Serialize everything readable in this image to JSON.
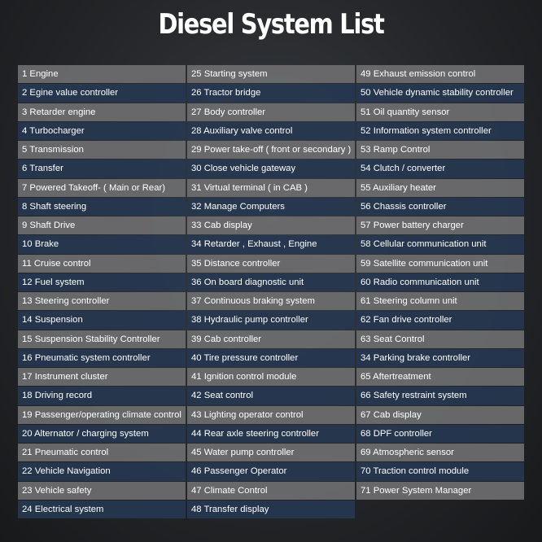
{
  "header": {
    "title": "Diesel System List"
  },
  "table": {
    "columns": [
      [
        "1 Engine",
        "2 Egine value controller",
        "3 Retarder engine",
        "4 Turbocharger",
        "5 Transmission",
        "6 Transfer",
        "7 Powered Takeoff- ( Main or Rear)",
        "8 Shaft steering",
        "9 Shaft Drive",
        "10 Brake",
        "11 Cruise control",
        "12 Fuel system",
        "13 Steering controller",
        "14 Suspension",
        "15 Suspension Stability Controller",
        "16 Pneumatic system controller",
        "17 Instrument cluster",
        "18 Driving record",
        "19 Passenger/operating climate control",
        "20 Alternator / charging system",
        "21 Pneumatic control",
        "22 Vehicle Navigation",
        "23 Vehicle safety",
        "24 Electrical system"
      ],
      [
        "25 Starting system",
        "26 Tractor bridge",
        "27 Body controller",
        "28 Auxiliary valve control",
        "29 Power take-off ( front or secondary )",
        "30 Close vehicle gateway",
        "31 Virtual terminal ( in CAB )",
        "32 Manage Computers",
        "33 Cab display",
        "34 Retarder , Exhaust , Engine",
        "35 Distance controller",
        "36 On board diagnostic unit",
        "37 Continuous braking system",
        "38 Hydraulic pump controller",
        "39 Cab controller",
        "40 Tire pressure controller",
        "41 Ignition control module",
        "42 Seat control",
        "43 Lighting operator control",
        "44 Rear axle steering controller",
        "45 Water pump controller",
        "46 Passenger Operator",
        "47 Climate Control",
        "48 Transfer display"
      ],
      [
        "49 Exhaust emission control",
        "50 Vehicle dynamic stability controller",
        "51 Oil quantity sensor",
        "52 Information system controller",
        "53 Ramp Control",
        "54 Clutch / converter",
        "55 Auxiliary heater",
        "56 Chassis controller",
        "57 Power battery charger",
        "58 Cellular communication unit",
        "59 Satellite communication unit",
        "60 Radio communication unit",
        "61 Steering column unit",
        "62 Fan drive controller",
        "63 Seat Control",
        "34 Parking brake controller",
        "65 Aftertreatment",
        "66 Safety restraint system",
        "67 Cab display",
        "68 DPF controller",
        "69 Atmospheric sensor",
        "70 Traction control module",
        "71 Power System Manager"
      ]
    ]
  }
}
